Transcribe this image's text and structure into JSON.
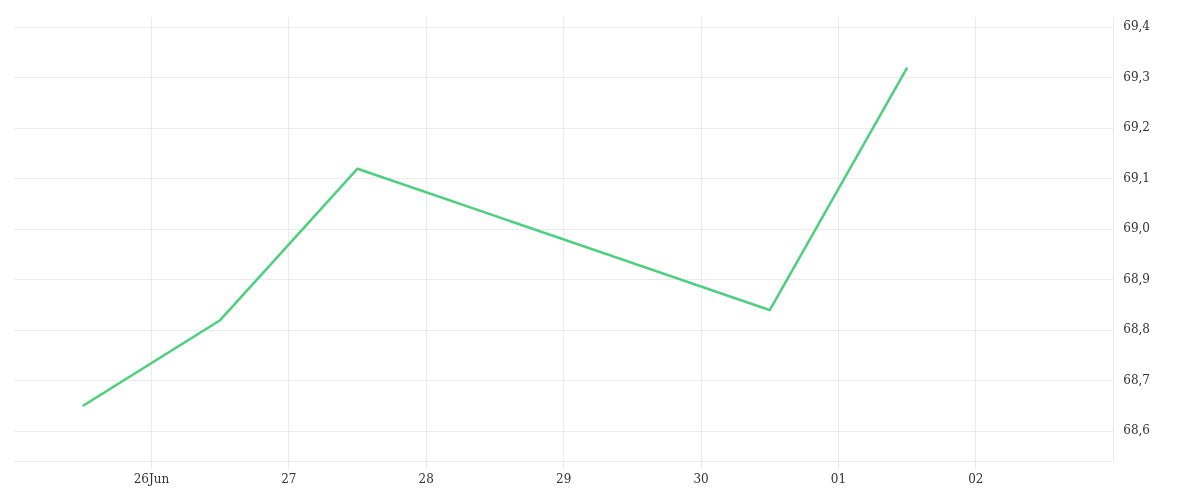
{
  "chart_data": {
    "type": "line",
    "x": [
      "--06-25T12:00",
      "--06-26T12:00",
      "--06-27T12:00",
      "--06-30T12:00",
      "--07-01T12:00"
    ],
    "series": [
      {
        "color": "#4cd07d",
        "values": [
          68.65,
          68.82,
          69.12,
          68.84,
          69.32
        ]
      }
    ],
    "xlim": [
      "--06-25T00:00",
      "--07-03T00:00"
    ],
    "xticks": [
      {
        "value": "--06-26",
        "label": "26Jun"
      },
      {
        "value": "--06-27",
        "label": "27"
      },
      {
        "value": "--06-28",
        "label": "28"
      },
      {
        "value": "--06-29",
        "label": "29"
      },
      {
        "value": "--06-30",
        "label": "30"
      },
      {
        "value": "--07-01",
        "label": "01"
      },
      {
        "value": "--07-02",
        "label": "02"
      }
    ],
    "ylim": [
      68.54,
      69.42
    ],
    "yticks": [
      {
        "value": 68.6,
        "label": "68,6"
      },
      {
        "value": 68.7,
        "label": "68,7"
      },
      {
        "value": 68.8,
        "label": "68,8"
      },
      {
        "value": 68.9,
        "label": "68,9"
      },
      {
        "value": 69.0,
        "label": "69,0"
      },
      {
        "value": 69.1,
        "label": "69,1"
      },
      {
        "value": 69.2,
        "label": "69,2"
      },
      {
        "value": 69.3,
        "label": "69,3"
      },
      {
        "value": 69.4,
        "label": "69,4"
      }
    ],
    "grid": true,
    "legend": false,
    "marker": "none",
    "line_style": "solid"
  }
}
